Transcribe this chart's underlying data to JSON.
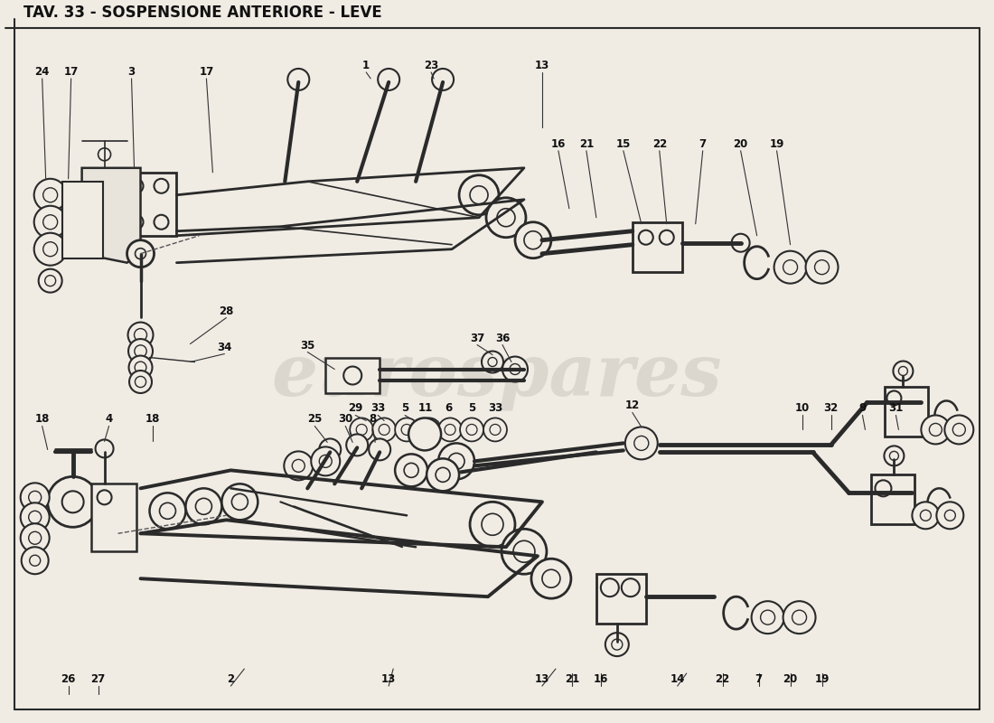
{
  "title": "TAV. 33 - SOSPENSIONE ANTERIORE - LEVE",
  "background_color": "#f0ece4",
  "border_color": "#1a1a1a",
  "line_color": "#2a2a2a",
  "text_color": "#111111",
  "watermark_text": "eurospares",
  "watermark_color": "#c8c4bc",
  "fig_width": 11.0,
  "fig_height": 8.0,
  "dpi": 100
}
